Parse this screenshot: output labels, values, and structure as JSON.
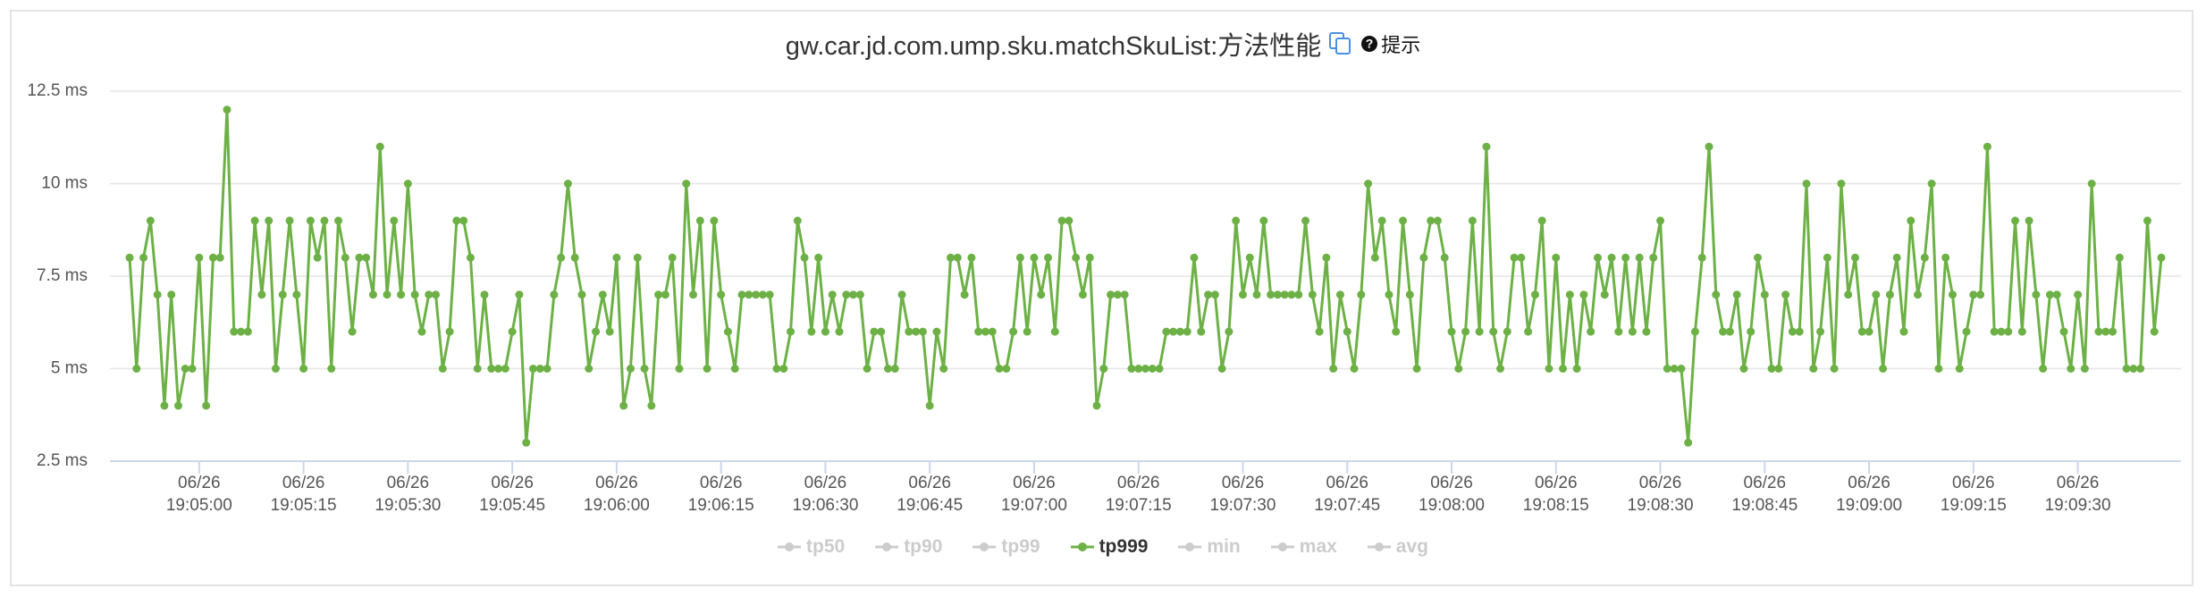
{
  "chart_data": {
    "type": "line",
    "title": "gw.car.jd.com.ump.sku.matchSkuList:方法性能",
    "hint": "提示",
    "ylim": [
      2.5,
      12.5
    ],
    "yticks": [
      {
        "value": 2.5,
        "label": "2.5 ms"
      },
      {
        "value": 5,
        "label": "5 ms"
      },
      {
        "value": 7.5,
        "label": "7.5 ms"
      },
      {
        "value": 10,
        "label": "10 ms"
      },
      {
        "value": 12.5,
        "label": "12.5 ms"
      }
    ],
    "grid": true,
    "legend_position": "bottom",
    "categories": [
      null,
      null,
      null,
      null,
      null,
      null,
      null,
      null,
      null,
      null,
      "06/26\n19:05:00",
      null,
      null,
      null,
      null,
      null,
      null,
      null,
      null,
      null,
      null,
      null,
      null,
      null,
      null,
      "06/26\n19:05:15",
      null,
      null,
      null,
      null,
      null,
      null,
      null,
      null,
      null,
      null,
      null,
      null,
      null,
      null,
      "06/26\n19:05:30",
      null,
      null,
      null,
      null,
      null,
      null,
      null,
      null,
      null,
      null,
      null,
      null,
      null,
      null,
      "06/26\n19:05:45",
      null,
      null,
      null,
      null,
      null,
      null,
      null,
      null,
      null,
      null,
      null,
      null,
      null,
      null,
      "06/26\n19:06:00",
      null,
      null,
      null,
      null,
      null,
      null,
      null,
      null,
      null,
      null,
      null,
      null,
      null,
      null,
      "06/26\n19:06:15",
      null,
      null,
      null,
      null,
      null,
      null,
      null,
      null,
      null,
      null,
      null,
      null,
      null,
      null,
      "06/26\n19:06:30",
      null,
      null,
      null,
      null,
      null,
      null,
      null,
      null,
      null,
      null,
      null,
      null,
      null,
      null,
      "06/26\n19:06:45",
      null,
      null,
      null,
      null,
      null,
      null,
      null,
      null,
      null,
      null,
      null,
      null,
      null,
      null,
      "06/26\n19:07:00",
      null,
      null,
      null,
      null,
      null,
      null,
      null,
      null,
      null,
      null,
      null,
      null,
      null,
      null,
      "06/26\n19:07:15",
      null,
      null,
      null,
      null,
      null,
      null,
      null,
      null,
      null,
      null,
      null,
      null,
      null,
      null,
      "06/26\n19:07:30",
      null,
      null,
      null,
      null,
      null,
      null,
      null,
      null,
      null,
      null,
      null,
      null,
      null,
      null,
      "06/26\n19:07:45",
      null,
      null,
      null,
      null,
      null,
      null,
      null,
      null,
      null,
      null,
      null,
      null,
      null,
      null,
      "06/26\n19:08:00",
      null,
      null,
      null,
      null,
      null,
      null,
      null,
      null,
      null,
      null,
      null,
      null,
      null,
      null,
      "06/26\n19:08:15",
      null,
      null,
      null,
      null,
      null,
      null,
      null,
      null,
      null,
      null,
      null,
      null,
      null,
      null,
      "06/26\n19:08:30",
      null,
      null,
      null,
      null,
      null,
      null,
      null,
      null,
      null,
      null,
      null,
      null,
      null,
      null,
      "06/26\n19:08:45",
      null,
      null,
      null,
      null,
      null,
      null,
      null,
      null,
      null,
      null,
      null,
      null,
      null,
      null,
      "06/26\n19:09:00",
      null,
      null,
      null,
      null,
      null,
      null,
      null,
      null,
      null,
      null,
      null,
      null,
      null,
      null,
      "06/26\n19:09:15",
      null,
      null,
      null,
      null,
      null,
      null,
      null,
      null,
      null,
      null,
      null,
      null,
      null,
      null,
      "06/26\n19:09:30",
      null,
      null,
      null,
      null,
      null,
      null,
      null,
      null,
      null,
      null,
      null,
      null
    ],
    "series": [
      {
        "name": "tp50",
        "visible": false
      },
      {
        "name": "tp90",
        "visible": false
      },
      {
        "name": "tp99",
        "visible": false
      },
      {
        "name": "tp999",
        "visible": true,
        "color": "#6db146",
        "values": [
          8,
          5,
          8,
          9,
          7,
          4,
          7,
          4,
          5,
          5,
          8,
          4,
          8,
          8,
          12,
          6,
          6,
          6,
          9,
          7,
          9,
          5,
          7,
          9,
          7,
          5,
          9,
          8,
          9,
          5,
          9,
          8,
          6,
          8,
          8,
          7,
          11,
          7,
          9,
          7,
          10,
          7,
          6,
          7,
          7,
          5,
          6,
          9,
          9,
          8,
          5,
          7,
          5,
          5,
          5,
          6,
          7,
          3,
          5,
          5,
          5,
          7,
          8,
          10,
          8,
          7,
          5,
          6,
          7,
          6,
          8,
          4,
          5,
          8,
          5,
          4,
          7,
          7,
          8,
          5,
          10,
          7,
          9,
          5,
          9,
          7,
          6,
          5,
          7,
          7,
          7,
          7,
          7,
          5,
          5,
          6,
          9,
          8,
          6,
          8,
          6,
          7,
          6,
          7,
          7,
          7,
          5,
          6,
          6,
          5,
          5,
          7,
          6,
          6,
          6,
          4,
          6,
          5,
          8,
          8,
          7,
          8,
          6,
          6,
          6,
          5,
          5,
          6,
          8,
          6,
          8,
          7,
          8,
          6,
          9,
          9,
          8,
          7,
          8,
          4,
          5,
          7,
          7,
          7,
          5,
          5,
          5,
          5,
          5,
          6,
          6,
          6,
          6,
          8,
          6,
          7,
          7,
          5,
          6,
          9,
          7,
          8,
          7,
          9,
          7,
          7,
          7,
          7,
          7,
          9,
          7,
          6,
          8,
          5,
          7,
          6,
          5,
          7,
          10,
          8,
          9,
          7,
          6,
          9,
          7,
          5,
          8,
          9,
          9,
          8,
          6,
          5,
          6,
          9,
          6,
          11,
          6,
          5,
          6,
          8,
          8,
          6,
          7,
          9,
          5,
          8,
          5,
          7,
          5,
          7,
          6,
          8,
          7,
          8,
          6,
          8,
          6,
          8,
          6,
          8,
          9,
          5,
          5,
          5,
          3,
          6,
          8,
          11,
          7,
          6,
          6,
          7,
          5,
          6,
          8,
          7,
          5,
          5,
          7,
          6,
          6,
          10,
          5,
          6,
          8,
          5,
          10,
          7,
          8,
          6,
          6,
          7,
          5,
          7,
          8,
          6,
          9,
          7,
          8,
          10,
          5,
          8,
          7,
          5,
          6,
          7,
          7,
          11,
          6,
          6,
          6,
          9,
          6,
          9,
          7,
          5,
          7,
          7,
          6,
          5,
          7,
          5,
          10,
          6,
          6,
          6,
          8,
          5,
          5,
          5,
          9,
          6,
          8
        ]
      },
      {
        "name": "min",
        "visible": false
      },
      {
        "name": "max",
        "visible": false
      },
      {
        "name": "avg",
        "visible": false
      }
    ]
  }
}
